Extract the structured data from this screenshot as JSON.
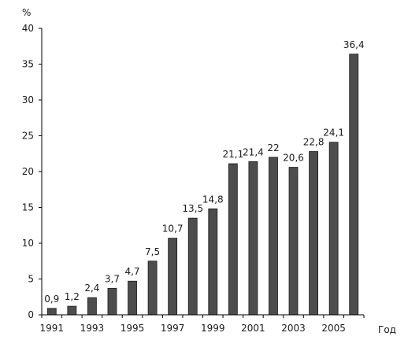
{
  "chart_data": {
    "type": "bar",
    "title": "",
    "ylabel": "%",
    "xlabel": "Год",
    "ylim": [
      0,
      40
    ],
    "yticks": [
      0,
      5,
      10,
      15,
      20,
      25,
      30,
      35,
      40
    ],
    "categories": [
      "1991",
      "1992",
      "1993",
      "1994",
      "1995",
      "1996",
      "1997",
      "1998",
      "1999",
      "2000",
      "2001",
      "2002",
      "2003",
      "2004",
      "2005",
      "2006"
    ],
    "xtick_labels": [
      "1991",
      "1993",
      "1995",
      "1997",
      "1999",
      "2001",
      "2003",
      "2005"
    ],
    "values": [
      0.9,
      1.2,
      2.4,
      3.7,
      4.7,
      7.5,
      10.7,
      13.5,
      14.8,
      21.1,
      21.4,
      22,
      20.6,
      22.8,
      24.1,
      36.4
    ],
    "value_labels": [
      "0,9",
      "1,2",
      "2,4",
      "3,7",
      "4,7",
      "7,5",
      "10,7",
      "13,5",
      "14,8",
      "21,1",
      "21,4",
      "22",
      "20,6",
      "22,8",
      "24,1",
      "36,4"
    ],
    "bar_color": "#4d4d4d",
    "grid": false,
    "legend": "none"
  }
}
